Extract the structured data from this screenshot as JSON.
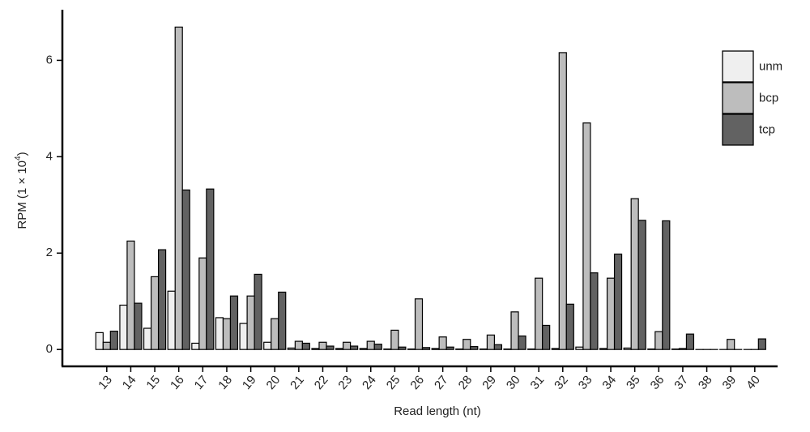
{
  "chart_data": {
    "type": "bar",
    "xlabel": "Read length (nt)",
    "ylabel": {
      "text": "RPM  (1 × 10",
      "sup": "4",
      "close": ")"
    },
    "categories": [
      "13",
      "14",
      "15",
      "16",
      "17",
      "18",
      "19",
      "20",
      "21",
      "22",
      "23",
      "24",
      "25",
      "26",
      "27",
      "28",
      "29",
      "30",
      "31",
      "32",
      "33",
      "34",
      "35",
      "36",
      "37",
      "38",
      "39",
      "40"
    ],
    "series": [
      {
        "name": "unm",
        "color": "#efefef",
        "values": [
          0.35,
          0.92,
          0.44,
          1.21,
          0.13,
          0.66,
          0.54,
          0.15,
          0.03,
          0.02,
          0.02,
          0.02,
          0.01,
          0.01,
          0.02,
          0.01,
          0.01,
          0.01,
          0.01,
          0.02,
          0.05,
          0.02,
          0.03,
          0.01,
          0.01,
          0,
          0,
          0
        ]
      },
      {
        "name": "bcp",
        "color": "#bdbdbd",
        "values": [
          0.15,
          2.25,
          1.51,
          6.69,
          1.9,
          0.64,
          1.11,
          0.64,
          0.17,
          0.15,
          0.15,
          0.17,
          0.4,
          1.05,
          0.26,
          0.21,
          0.3,
          0.78,
          1.48,
          6.16,
          4.7,
          1.48,
          3.13,
          0.37,
          0.02,
          0,
          0.21,
          0
        ]
      },
      {
        "name": "tcp",
        "color": "#626262",
        "values": [
          0.38,
          0.96,
          2.07,
          3.31,
          3.33,
          1.11,
          1.56,
          1.19,
          0.13,
          0.07,
          0.07,
          0.11,
          0.05,
          0.04,
          0.05,
          0.06,
          0.1,
          0.28,
          0.5,
          0.94,
          1.59,
          1.98,
          2.68,
          2.67,
          0.32,
          0,
          0,
          0.22
        ]
      }
    ],
    "ylim": [
      -0.35,
      7.05
    ],
    "yticks": [
      0,
      2,
      4,
      6
    ],
    "grid": false,
    "legend": "top-right"
  }
}
